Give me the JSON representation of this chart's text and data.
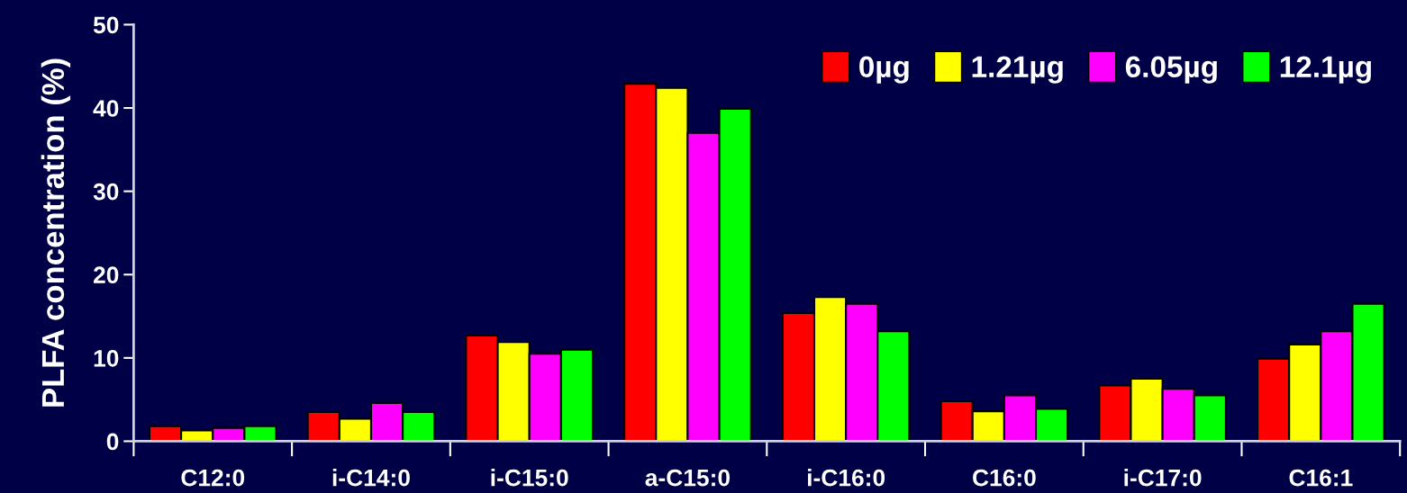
{
  "chart_data": {
    "type": "bar",
    "ylabel": "PLFA concentration (%)",
    "categories": [
      "C12:0",
      "i-C14:0",
      "i-C15:0",
      "a-C15:0",
      "i-C16:0",
      "C16:0",
      "i-C17:0",
      "C16:1"
    ],
    "series": [
      {
        "name": "0µg",
        "color": "#ff0000",
        "values": [
          1.8,
          3.5,
          12.7,
          42.9,
          15.4,
          4.8,
          6.7,
          9.9
        ]
      },
      {
        "name": "1.21µg",
        "color": "#ffff00",
        "values": [
          1.3,
          2.7,
          11.9,
          42.4,
          17.3,
          3.6,
          7.5,
          11.6
        ]
      },
      {
        "name": "6.05µg",
        "color": "#ff00ff",
        "values": [
          1.6,
          4.6,
          10.5,
          37.0,
          16.5,
          5.5,
          6.3,
          13.2
        ]
      },
      {
        "name": "12.1µg",
        "color": "#00ff00",
        "values": [
          1.8,
          3.5,
          11.0,
          39.9,
          13.2,
          3.9,
          5.5,
          16.5
        ]
      }
    ],
    "ylim": [
      0,
      50
    ],
    "yticks": [
      0,
      10,
      20,
      30,
      40,
      50
    ],
    "grid": false,
    "legend": "top right"
  }
}
